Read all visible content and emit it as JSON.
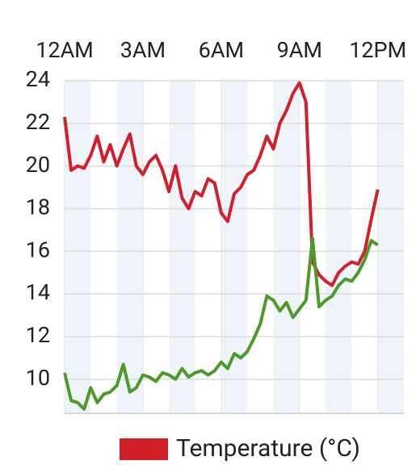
{
  "chart_data": {
    "type": "line",
    "x": [
      0,
      0.25,
      0.5,
      0.75,
      1,
      1.25,
      1.5,
      1.75,
      2,
      2.25,
      2.5,
      2.75,
      3,
      3.25,
      3.5,
      3.75,
      4,
      4.25,
      4.5,
      4.75,
      5,
      5.25,
      5.5,
      5.75,
      6,
      6.25,
      6.5,
      6.75,
      7,
      7.25,
      7.5,
      7.75,
      8,
      8.25,
      8.5,
      8.75,
      9,
      9.25,
      9.5,
      9.75,
      10,
      10.25,
      10.5,
      10.75,
      11,
      11.25,
      11.5,
      11.75,
      12
    ],
    "series": [
      {
        "name": "Temperature (°C)",
        "color": "#d0202a",
        "values": [
          22.3,
          19.8,
          20.0,
          19.9,
          20.5,
          21.4,
          20.2,
          21.0,
          20.0,
          20.8,
          21.5,
          20.0,
          19.6,
          20.2,
          20.5,
          19.8,
          18.8,
          20.0,
          18.5,
          18.0,
          18.8,
          18.6,
          19.4,
          19.2,
          17.8,
          17.4,
          18.7,
          19.0,
          19.6,
          19.8,
          20.5,
          21.4,
          20.8,
          22.0,
          22.6,
          23.4,
          23.9,
          23.0,
          15.5,
          14.9,
          14.6,
          14.4,
          15.0,
          15.3,
          15.5,
          15.4,
          16.0,
          17.5,
          18.9
        ]
      },
      {
        "color": "#4c9a2a",
        "values": [
          10.3,
          9.0,
          8.9,
          8.6,
          9.6,
          8.9,
          9.3,
          9.4,
          9.7,
          10.7,
          9.4,
          9.6,
          10.2,
          10.1,
          9.9,
          10.3,
          10.2,
          10.0,
          10.5,
          10.1,
          10.3,
          10.4,
          10.2,
          10.4,
          10.8,
          10.5,
          11.2,
          11.0,
          11.3,
          11.9,
          12.6,
          13.9,
          13.7,
          13.2,
          13.6,
          12.9,
          13.3,
          13.7,
          16.6,
          13.4,
          13.7,
          13.9,
          14.4,
          14.7,
          14.6,
          15.0,
          15.6,
          16.5,
          16.3
        ]
      }
    ],
    "xlim": [
      0,
      13
    ],
    "xticks": [
      {
        "value": 0,
        "label": "12AM"
      },
      {
        "value": 3,
        "label": "3AM"
      },
      {
        "value": 6,
        "label": "6AM"
      },
      {
        "value": 9,
        "label": "9AM"
      },
      {
        "value": 12,
        "label": "12PM"
      }
    ],
    "ylim": [
      8.4,
      24
    ],
    "yticks": [
      10,
      12,
      14,
      16,
      18,
      20,
      22,
      24
    ],
    "grid": true
  }
}
